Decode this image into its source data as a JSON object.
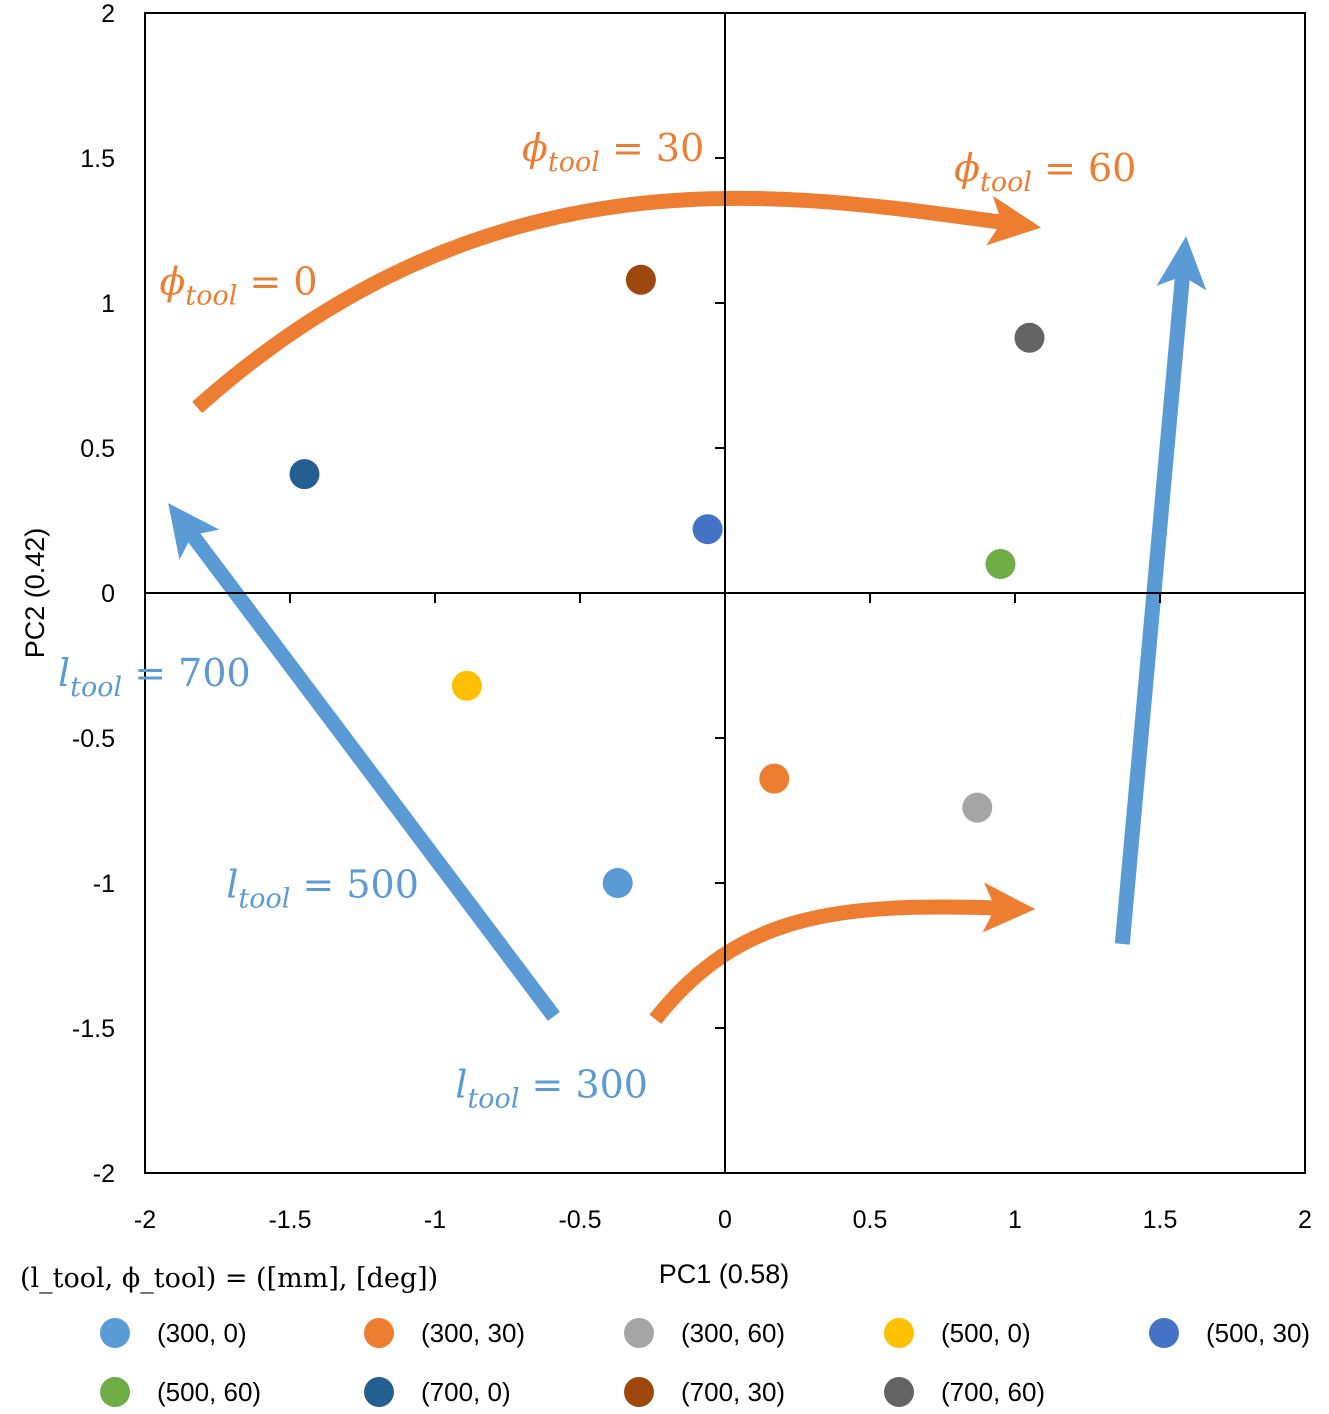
{
  "chart_data": {
    "type": "scatter",
    "xlabel": "PC1 (0.58)",
    "ylabel": "PC2 (0.42)",
    "xlim": [
      -2,
      2
    ],
    "ylim": [
      -2,
      2
    ],
    "xticks": [
      "-2",
      "-1.5",
      "-1",
      "-0.5",
      "0",
      "0.5",
      "1",
      "1.5",
      "2"
    ],
    "yticks": [
      "2",
      "1.5",
      "1",
      "0.5",
      "0",
      "-0.5",
      "-1",
      "-1.5",
      "-2"
    ],
    "legend_title": "(l_tool, ϕ_tool) = ([mm], [deg])",
    "series": [
      {
        "name": "(300, 0)",
        "color": "#5B9BD5",
        "x": -0.37,
        "y": -1.0
      },
      {
        "name": "(300, 30)",
        "color": "#ED7D31",
        "x": 0.17,
        "y": -0.64
      },
      {
        "name": "(300, 60)",
        "color": "#A5A5A5",
        "x": 0.87,
        "y": -0.74
      },
      {
        "name": "(500, 0)",
        "color": "#FFC000",
        "x": -0.89,
        "y": -0.32
      },
      {
        "name": "(500, 30)",
        "color": "#4472C4",
        "x": -0.06,
        "y": 0.22
      },
      {
        "name": "(500, 60)",
        "color": "#70AD47",
        "x": 0.95,
        "y": 0.1
      },
      {
        "name": "(700, 0)",
        "color": "#255E91",
        "x": -1.45,
        "y": 0.41
      },
      {
        "name": "(700, 30)",
        "color": "#9E480E",
        "x": -0.29,
        "y": 1.08
      },
      {
        "name": "(700, 60)",
        "color": "#636363",
        "x": 1.05,
        "y": 0.88
      }
    ],
    "annotations": [
      {
        "var": "ϕ",
        "sub": "tool",
        "rest": " = 0",
        "color": "#ED7D31",
        "x": -1.95,
        "y": 1.03
      },
      {
        "var": "ϕ",
        "sub": "tool",
        "rest": " = 30",
        "color": "#ED7D31",
        "x": -0.7,
        "y": 1.49
      },
      {
        "var": "ϕ",
        "sub": "tool",
        "rest": " = 60",
        "color": "#ED7D31",
        "x": 0.79,
        "y": 1.42
      },
      {
        "var": "l",
        "sub": "tool",
        "rest": " = 700",
        "color": "#5B9BD5",
        "x": -2.3,
        "y": -0.32
      },
      {
        "var": "l",
        "sub": "tool",
        "rest": " = 500",
        "color": "#5B9BD5",
        "x": -1.72,
        "y": -1.05
      },
      {
        "var": "l",
        "sub": "tool",
        "rest": " = 300",
        "color": "#5B9BD5",
        "x": -0.93,
        "y": -1.74
      }
    ],
    "arrows": [
      {
        "color": "#ED7D31",
        "from": [
          -1.82,
          0.64
        ],
        "to": [
          1.09,
          1.26
        ],
        "ctrl": [
          [
            -0.8,
            1.55
          ],
          [
            0.2,
            1.38
          ]
        ]
      },
      {
        "color": "#ED7D31",
        "from": [
          -0.24,
          -1.47
        ],
        "to": [
          1.07,
          -1.09
        ],
        "ctrl": [
          [
            0.05,
            -1.1
          ],
          [
            0.4,
            -1.07
          ]
        ]
      },
      {
        "color": "#5B9BD5",
        "from": [
          -0.59,
          -1.46
        ],
        "to": [
          -1.92,
          0.31
        ]
      },
      {
        "color": "#5B9BD5",
        "from": [
          1.37,
          -1.21
        ],
        "to": [
          1.59,
          1.23
        ]
      }
    ]
  }
}
